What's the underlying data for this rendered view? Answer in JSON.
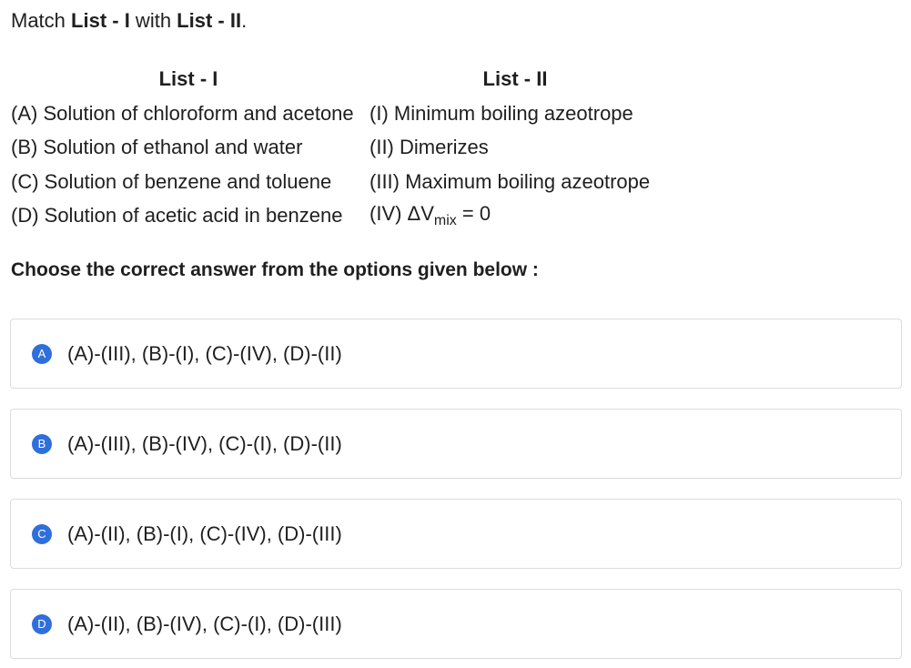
{
  "question": {
    "prefix": "Match ",
    "list1": "List - I",
    "mid": " with ",
    "list2": "List - II",
    "suffix": "."
  },
  "table": {
    "header_left": "List - I",
    "header_right": "List - II",
    "rows": [
      {
        "left": "(A) Solution of chloroform and acetone",
        "right": "(I) Minimum boiling azeotrope"
      },
      {
        "left": "(B) Solution of ethanol and water",
        "right": "(II) Dimerizes"
      },
      {
        "left": "(C) Solution of benzene and toluene",
        "right": "(III) Maximum boiling azeotrope"
      },
      {
        "left": "(D) Solution of acetic acid in benzene",
        "right_prefix": "(IV) ΔV",
        "right_sub": "mix",
        "right_suffix": " = 0"
      }
    ]
  },
  "instruction": "Choose the correct answer from the options given below :",
  "options": [
    {
      "letter": "A",
      "text": "(A)-(III), (B)-(I), (C)-(IV), (D)-(II)"
    },
    {
      "letter": "B",
      "text": "(A)-(III), (B)-(IV), (C)-(I), (D)-(II)"
    },
    {
      "letter": "C",
      "text": "(A)-(II), (B)-(I), (C)-(IV), (D)-(III)"
    },
    {
      "letter": "D",
      "text": "(A)-(II), (B)-(IV), (C)-(I), (D)-(III)"
    }
  ],
  "colors": {
    "badge": "#2f6fdc",
    "option_border": "#dcdcdc",
    "text": "#1f1f1f"
  }
}
